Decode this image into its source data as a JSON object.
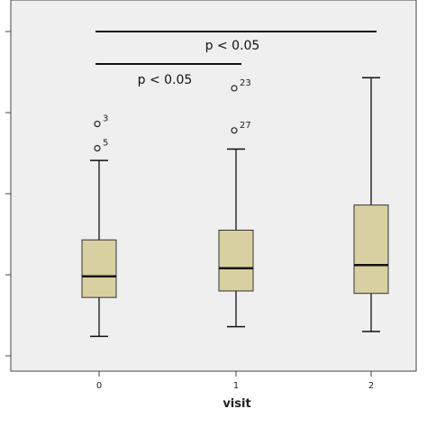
{
  "chart_data": {
    "type": "box",
    "xlabel": "visit",
    "categories": [
      "0",
      "1",
      "2"
    ],
    "y_ticks": [
      0,
      1,
      2,
      3,
      4
    ],
    "ylim": [
      0,
      4.3
    ],
    "box_color": "#d8d0a0",
    "plot_background": "#efefef",
    "groups": [
      {
        "category": "0",
        "whisker_low": 0.24,
        "q1": 0.72,
        "median": 0.98,
        "q3": 1.43,
        "whisker_high": 2.41,
        "outliers": [
          {
            "value": 2.86,
            "label": "3"
          },
          {
            "value": 2.56,
            "label": "5"
          }
        ]
      },
      {
        "category": "1",
        "whisker_low": 0.36,
        "q1": 0.8,
        "median": 1.08,
        "q3": 1.55,
        "whisker_high": 2.55,
        "outliers": [
          {
            "value": 3.3,
            "label": "23"
          },
          {
            "value": 2.78,
            "label": "27"
          }
        ]
      },
      {
        "category": "2",
        "whisker_low": 0.3,
        "q1": 0.77,
        "median": 1.12,
        "q3": 1.86,
        "whisker_high": 3.43,
        "outliers": []
      }
    ],
    "significance": [
      {
        "from": "0",
        "to": "2",
        "level": 4.0,
        "label": "p < 0.05"
      },
      {
        "from": "0",
        "to": "1",
        "level": 3.6,
        "label": "p < 0.05"
      }
    ]
  }
}
